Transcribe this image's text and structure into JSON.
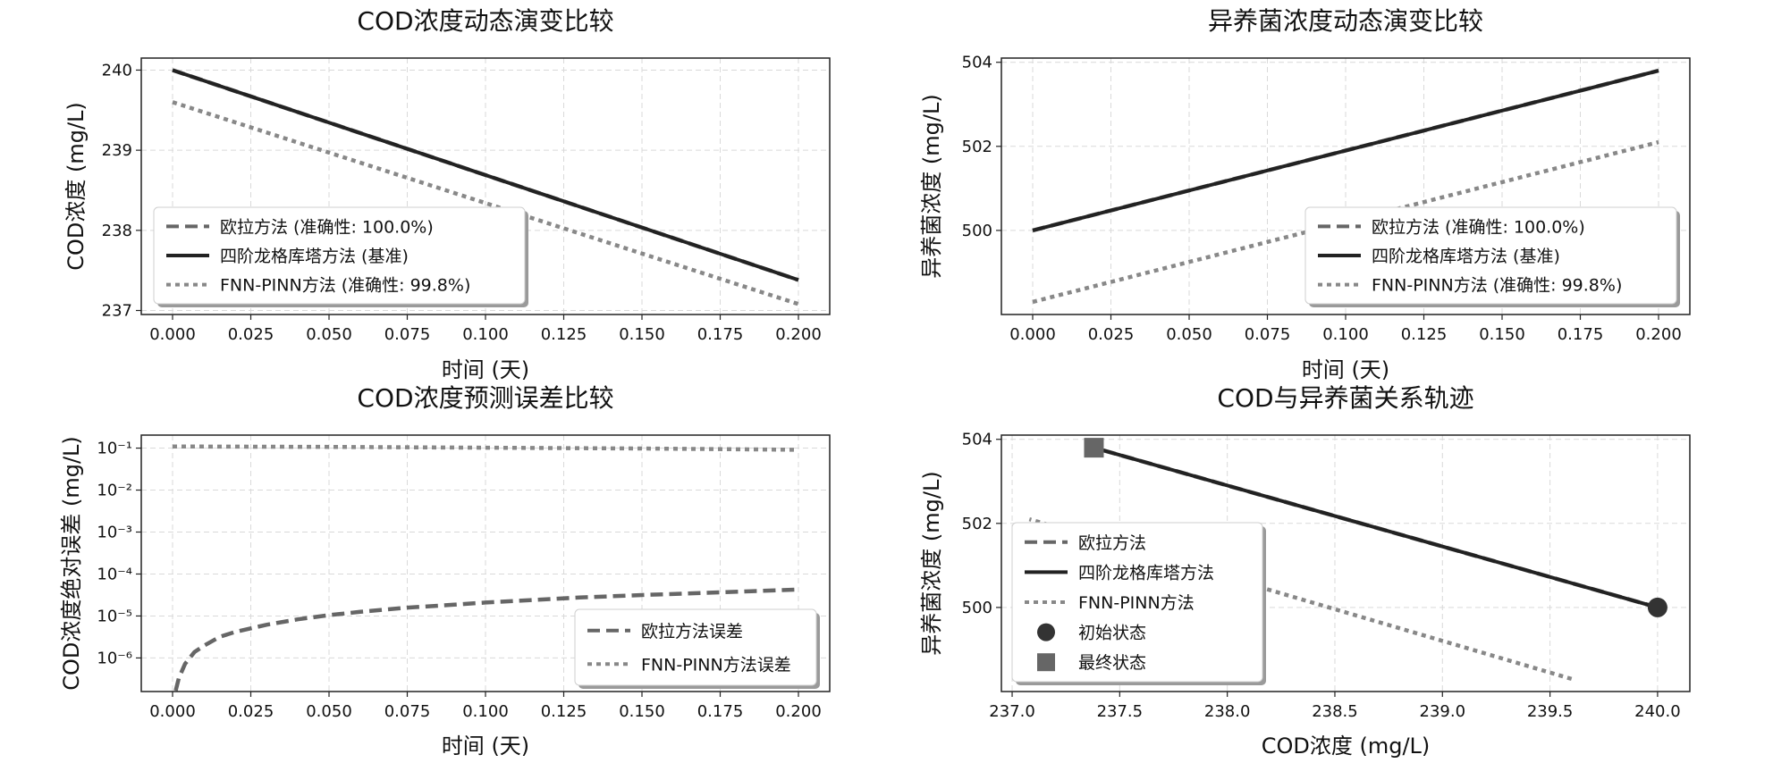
{
  "chart_data": [
    {
      "id": "cod",
      "type": "line",
      "title": "COD浓度动态演变比较",
      "xlabel": "时间 (天)",
      "ylabel": "COD浓度 (mg/L)",
      "xlim": [
        -0.01,
        0.21
      ],
      "ylim": [
        236.95,
        240.15
      ],
      "xticks": [
        0.0,
        0.025,
        0.05,
        0.075,
        0.1,
        0.125,
        0.15,
        0.175,
        0.2
      ],
      "xtick_labels": [
        "0.000",
        "0.025",
        "0.050",
        "0.075",
        "0.100",
        "0.125",
        "0.150",
        "0.175",
        "0.200"
      ],
      "yticks": [
        237,
        238,
        239,
        240
      ],
      "ytick_labels": [
        "237",
        "238",
        "239",
        "240"
      ],
      "grid": true,
      "legend_position": "lower-left",
      "series": [
        {
          "name": "欧拉方法 (准确性: 100.0%)",
          "style": "dashed",
          "color": "#666666",
          "x": [
            0.0,
            0.2
          ],
          "y": [
            240.0,
            237.38
          ]
        },
        {
          "name": "四阶龙格库塔方法 (基准)",
          "style": "solid",
          "color": "#222222",
          "x": [
            0.0,
            0.2
          ],
          "y": [
            240.0,
            237.38
          ]
        },
        {
          "name": "FNN-PINN方法 (准确性: 99.8%)",
          "style": "dotted",
          "color": "#888888",
          "x": [
            0.0,
            0.2
          ],
          "y": [
            239.6,
            237.08
          ]
        }
      ]
    },
    {
      "id": "bio",
      "type": "line",
      "title": "异养菌浓度动态演变比较",
      "xlabel": "时间 (天)",
      "ylabel": "异养菌浓度 (mg/L)",
      "xlim": [
        -0.01,
        0.21
      ],
      "ylim": [
        498.0,
        504.1
      ],
      "xticks": [
        0.0,
        0.025,
        0.05,
        0.075,
        0.1,
        0.125,
        0.15,
        0.175,
        0.2
      ],
      "xtick_labels": [
        "0.000",
        "0.025",
        "0.050",
        "0.075",
        "0.100",
        "0.125",
        "0.150",
        "0.175",
        "0.200"
      ],
      "yticks": [
        500,
        502,
        504
      ],
      "ytick_labels": [
        "500",
        "502",
        "504"
      ],
      "grid": true,
      "legend_position": "lower-right",
      "series": [
        {
          "name": "欧拉方法 (准确性: 100.0%)",
          "style": "dashed",
          "color": "#666666",
          "x": [
            0.0,
            0.2
          ],
          "y": [
            500.0,
            503.8
          ]
        },
        {
          "name": "四阶龙格库塔方法 (基准)",
          "style": "solid",
          "color": "#222222",
          "x": [
            0.0,
            0.2
          ],
          "y": [
            500.0,
            503.8
          ]
        },
        {
          "name": "FNN-PINN方法 (准确性: 99.8%)",
          "style": "dotted",
          "color": "#888888",
          "x": [
            0.0,
            0.2
          ],
          "y": [
            498.3,
            502.1
          ]
        }
      ]
    },
    {
      "id": "err",
      "type": "line",
      "title": "COD浓度预测误差比较",
      "xlabel": "时间 (天)",
      "ylabel": "COD浓度绝对误差 (mg/L)",
      "yscale": "log",
      "xlim": [
        -0.01,
        0.21
      ],
      "ylim_exp": [
        -6.8,
        -0.69
      ],
      "xticks": [
        0.0,
        0.025,
        0.05,
        0.075,
        0.1,
        0.125,
        0.15,
        0.175,
        0.2
      ],
      "xtick_labels": [
        "0.000",
        "0.025",
        "0.050",
        "0.075",
        "0.100",
        "0.125",
        "0.150",
        "0.175",
        "0.200"
      ],
      "ytick_exps": [
        -6,
        -5,
        -4,
        -3,
        -2,
        -1
      ],
      "ytick_labels": [
        "10⁻⁶",
        "10⁻⁵",
        "10⁻⁴",
        "10⁻³",
        "10⁻²",
        "10⁻¹"
      ],
      "grid": true,
      "legend_position": "lower-right",
      "series": [
        {
          "name": "欧拉方法误差",
          "style": "dashed",
          "color": "#666666",
          "x": [
            0.001,
            0.002,
            0.004,
            0.007,
            0.01,
            0.015,
            0.02,
            0.03,
            0.04,
            0.05,
            0.06,
            0.075,
            0.09,
            0.1,
            0.115,
            0.13,
            0.15,
            0.17,
            0.185,
            0.2
          ],
          "log10_y": [
            -6.78,
            -6.48,
            -6.14,
            -5.86,
            -5.71,
            -5.5,
            -5.38,
            -5.21,
            -5.08,
            -4.98,
            -4.9,
            -4.8,
            -4.73,
            -4.68,
            -4.62,
            -4.56,
            -4.5,
            -4.45,
            -4.41,
            -4.37
          ]
        },
        {
          "name": "FNN-PINN方法误差",
          "style": "dotted",
          "color": "#888888",
          "x": [
            0.0,
            0.05,
            0.1,
            0.15,
            0.2
          ],
          "log10_y": [
            -0.96,
            -0.97,
            -0.99,
            -1.01,
            -1.04
          ]
        }
      ]
    },
    {
      "id": "traj",
      "type": "line",
      "title": "COD与异养菌关系轨迹",
      "xlabel": "COD浓度 (mg/L)",
      "ylabel": "异养菌浓度 (mg/L)",
      "xlim": [
        236.95,
        240.15
      ],
      "ylim": [
        498.0,
        504.1
      ],
      "xticks": [
        237.0,
        237.5,
        238.0,
        238.5,
        239.0,
        239.5,
        240.0
      ],
      "xtick_labels": [
        "237.0",
        "237.5",
        "238.0",
        "238.5",
        "239.0",
        "239.5",
        "240.0"
      ],
      "yticks": [
        500,
        502,
        504
      ],
      "ytick_labels": [
        "500",
        "502",
        "504"
      ],
      "grid": true,
      "legend_position": "lower-left",
      "series": [
        {
          "name": "欧拉方法",
          "style": "dashed",
          "color": "#666666",
          "x": [
            240.0,
            237.38
          ],
          "y": [
            500.0,
            503.8
          ]
        },
        {
          "name": "四阶龙格库塔方法",
          "style": "solid",
          "color": "#222222",
          "x": [
            240.0,
            237.38
          ],
          "y": [
            500.0,
            503.8
          ]
        },
        {
          "name": "FNN-PINN方法",
          "style": "dotted",
          "color": "#888888",
          "x": [
            239.6,
            237.08
          ],
          "y": [
            498.3,
            502.1
          ]
        }
      ],
      "markers": [
        {
          "name": "初始状态",
          "shape": "circle",
          "color": "#333333",
          "x": 240.0,
          "y": 500.0
        },
        {
          "name": "最终状态",
          "shape": "square",
          "color": "#666666",
          "x": 237.38,
          "y": 503.8
        }
      ]
    }
  ]
}
